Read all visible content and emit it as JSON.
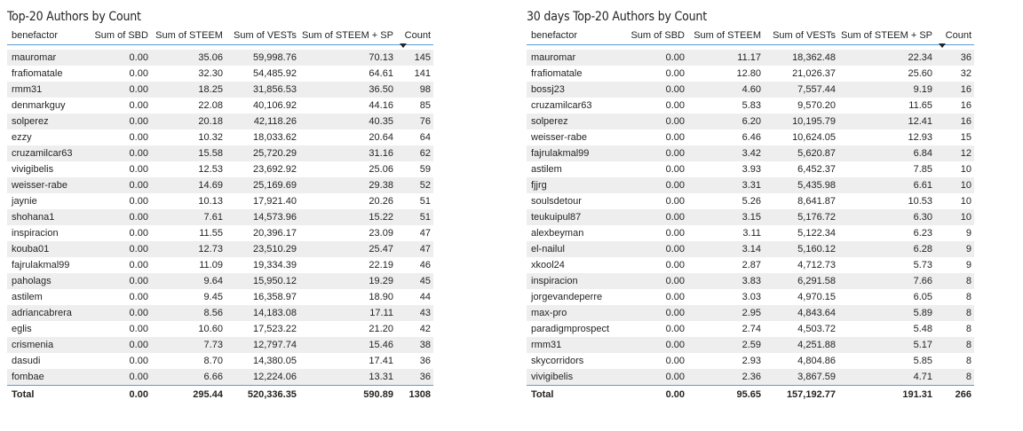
{
  "left": {
    "title": "Top-20 Authors by Count",
    "columns": [
      "benefactor",
      "Sum of SBD",
      "Sum of STEEM",
      "Sum of VESTs",
      "Sum of STEEM + SP",
      "Count"
    ],
    "rows": [
      [
        "mauromar",
        "0.00",
        "35.06",
        "59,998.76",
        "70.13",
        "145"
      ],
      [
        "frafiomatale",
        "0.00",
        "32.30",
        "54,485.92",
        "64.61",
        "141"
      ],
      [
        "rmm31",
        "0.00",
        "18.25",
        "31,856.53",
        "36.50",
        "98"
      ],
      [
        "denmarkguy",
        "0.00",
        "22.08",
        "40,106.92",
        "44.16",
        "85"
      ],
      [
        "solperez",
        "0.00",
        "20.18",
        "42,118.26",
        "40.35",
        "76"
      ],
      [
        "ezzy",
        "0.00",
        "10.32",
        "18,033.62",
        "20.64",
        "64"
      ],
      [
        "cruzamilcar63",
        "0.00",
        "15.58",
        "25,720.29",
        "31.16",
        "62"
      ],
      [
        "vivigibelis",
        "0.00",
        "12.53",
        "23,692.92",
        "25.06",
        "59"
      ],
      [
        "weisser-rabe",
        "0.00",
        "14.69",
        "25,169.69",
        "29.38",
        "52"
      ],
      [
        "jaynie",
        "0.00",
        "10.13",
        "17,921.40",
        "20.26",
        "51"
      ],
      [
        "shohana1",
        "0.00",
        "7.61",
        "14,573.96",
        "15.22",
        "51"
      ],
      [
        "inspiracion",
        "0.00",
        "11.55",
        "20,396.17",
        "23.09",
        "47"
      ],
      [
        "kouba01",
        "0.00",
        "12.73",
        "23,510.29",
        "25.47",
        "47"
      ],
      [
        "fajrulakmal99",
        "0.00",
        "11.09",
        "19,334.39",
        "22.19",
        "46"
      ],
      [
        "paholags",
        "0.00",
        "9.64",
        "15,950.12",
        "19.29",
        "45"
      ],
      [
        "astilem",
        "0.00",
        "9.45",
        "16,358.97",
        "18.90",
        "44"
      ],
      [
        "adriancabrera",
        "0.00",
        "8.56",
        "14,183.08",
        "17.11",
        "43"
      ],
      [
        "eglis",
        "0.00",
        "10.60",
        "17,523.22",
        "21.20",
        "42"
      ],
      [
        "crismenia",
        "0.00",
        "7.73",
        "12,797.74",
        "15.46",
        "38"
      ],
      [
        "dasudi",
        "0.00",
        "8.70",
        "14,380.05",
        "17.41",
        "36"
      ],
      [
        "fombae",
        "0.00",
        "6.66",
        "12,224.06",
        "13.31",
        "36"
      ]
    ],
    "total": [
      "Total",
      "0.00",
      "295.44",
      "520,336.35",
      "590.89",
      "1308"
    ]
  },
  "right": {
    "title": "30 days Top-20 Authors by Count",
    "columns": [
      "benefactor",
      "Sum of SBD",
      "Sum of STEEM",
      "Sum of VESTs",
      "Sum of STEEM + SP",
      "Count"
    ],
    "rows": [
      [
        "mauromar",
        "0.00",
        "11.17",
        "18,362.48",
        "22.34",
        "36"
      ],
      [
        "frafiomatale",
        "0.00",
        "12.80",
        "21,026.37",
        "25.60",
        "32"
      ],
      [
        "bossj23",
        "0.00",
        "4.60",
        "7,557.44",
        "9.19",
        "16"
      ],
      [
        "cruzamilcar63",
        "0.00",
        "5.83",
        "9,570.20",
        "11.65",
        "16"
      ],
      [
        "solperez",
        "0.00",
        "6.20",
        "10,195.79",
        "12.41",
        "16"
      ],
      [
        "weisser-rabe",
        "0.00",
        "6.46",
        "10,624.05",
        "12.93",
        "15"
      ],
      [
        "fajrulakmal99",
        "0.00",
        "3.42",
        "5,620.87",
        "6.84",
        "12"
      ],
      [
        "astilem",
        "0.00",
        "3.93",
        "6,452.37",
        "7.85",
        "10"
      ],
      [
        "fjjrg",
        "0.00",
        "3.31",
        "5,435.98",
        "6.61",
        "10"
      ],
      [
        "soulsdetour",
        "0.00",
        "5.26",
        "8,641.87",
        "10.53",
        "10"
      ],
      [
        "teukuipul87",
        "0.00",
        "3.15",
        "5,176.72",
        "6.30",
        "10"
      ],
      [
        "alexbeyman",
        "0.00",
        "3.11",
        "5,122.34",
        "6.23",
        "9"
      ],
      [
        "el-nailul",
        "0.00",
        "3.14",
        "5,160.12",
        "6.28",
        "9"
      ],
      [
        "xkool24",
        "0.00",
        "2.87",
        "4,712.73",
        "5.73",
        "9"
      ],
      [
        "inspiracion",
        "0.00",
        "3.83",
        "6,291.58",
        "7.66",
        "8"
      ],
      [
        "jorgevandeperre",
        "0.00",
        "3.03",
        "4,970.15",
        "6.05",
        "8"
      ],
      [
        "max-pro",
        "0.00",
        "2.95",
        "4,843.64",
        "5.89",
        "8"
      ],
      [
        "paradigmprospect",
        "0.00",
        "2.74",
        "4,503.72",
        "5.48",
        "8"
      ],
      [
        "rmm31",
        "0.00",
        "2.59",
        "4,251.88",
        "5.17",
        "8"
      ],
      [
        "skycorridors",
        "0.00",
        "2.93",
        "4,804.86",
        "5.85",
        "8"
      ],
      [
        "vivigibelis",
        "0.00",
        "2.36",
        "3,867.59",
        "4.71",
        "8"
      ]
    ],
    "total": [
      "Total",
      "0.00",
      "95.65",
      "157,192.77",
      "191.31",
      "266"
    ]
  }
}
